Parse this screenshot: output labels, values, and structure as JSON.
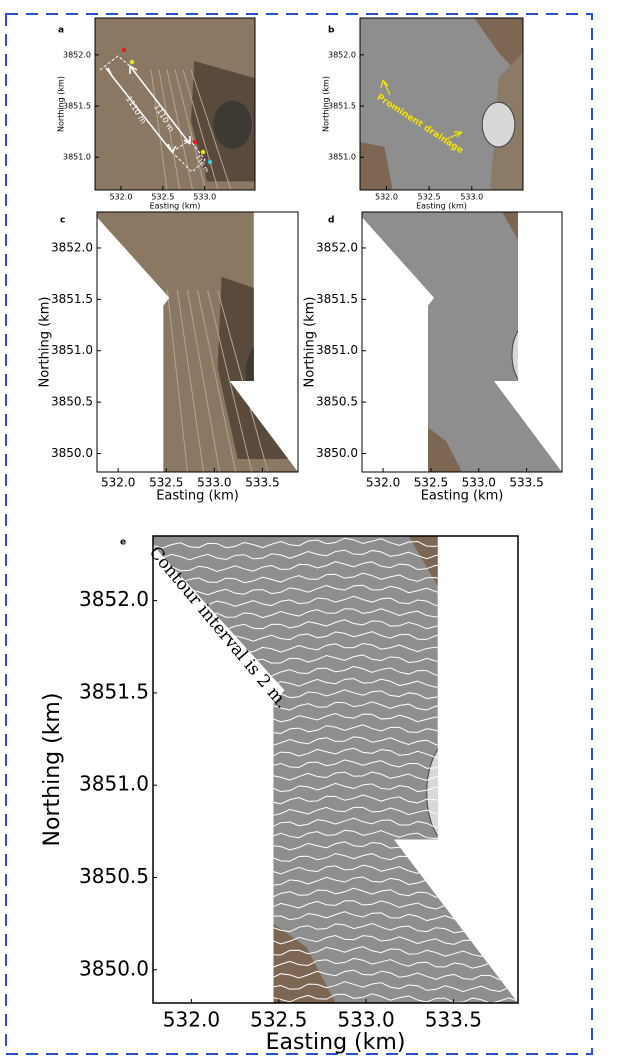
{
  "chart_data": [
    {
      "type": "image",
      "panel": "a",
      "xlabel": "Easting (km)",
      "ylabel": "Northing (km)",
      "xlim": [
        531.69,
        533.6
      ],
      "ylim": [
        3850.68,
        3852.36
      ],
      "xticks": [
        {
          "value": 532,
          "label": "532.0"
        },
        {
          "value": 532.5,
          "label": "532.5"
        },
        {
          "value": 533,
          "label": "533.0"
        }
      ],
      "yticks": [
        {
          "value": 3851,
          "label": "3851.0"
        },
        {
          "value": 3851.5,
          "label": "3851.5"
        },
        {
          "value": 3852,
          "label": "3852.0"
        }
      ],
      "annotations": [
        "1110 m",
        "1110 m",
        "110 m"
      ]
    },
    {
      "type": "image",
      "panel": "b",
      "xlabel": "Easting (km)",
      "ylabel": "Northing (km)",
      "xlim": [
        531.69,
        533.6
      ],
      "ylim": [
        3850.68,
        3852.36
      ],
      "xticks": [
        {
          "value": 532,
          "label": "532.0"
        },
        {
          "value": 532.5,
          "label": "532.5"
        },
        {
          "value": 533,
          "label": "533.0"
        }
      ],
      "yticks": [
        {
          "value": 3851,
          "label": "3851.0"
        },
        {
          "value": 3851.5,
          "label": "3851.5"
        },
        {
          "value": 3852,
          "label": "3852.0"
        }
      ],
      "annotations": [
        "Prominent drainage"
      ]
    },
    {
      "type": "image",
      "panel": "c",
      "xlabel": "Easting (km)",
      "ylabel": "Northing (km)",
      "xlim": [
        531.78,
        533.87
      ],
      "ylim": [
        3849.82,
        3852.35
      ],
      "xticks": [
        {
          "value": 532,
          "label": "532.0"
        },
        {
          "value": 532.5,
          "label": "532.5"
        },
        {
          "value": 533,
          "label": "533.0"
        },
        {
          "value": 533.5,
          "label": "533.5"
        }
      ],
      "yticks": [
        {
          "value": 3850,
          "label": "3850.0"
        },
        {
          "value": 3850.5,
          "label": "3850.5"
        },
        {
          "value": 3851,
          "label": "3851.0"
        },
        {
          "value": 3851.5,
          "label": "3851.5"
        },
        {
          "value": 3852,
          "label": "3852.0"
        }
      ],
      "annotations": []
    },
    {
      "type": "image",
      "panel": "d",
      "xlabel": "Easting (km)",
      "ylabel": "Northing (km)",
      "xlim": [
        531.78,
        533.87
      ],
      "ylim": [
        3849.82,
        3852.35
      ],
      "xticks": [
        {
          "value": 532,
          "label": "532.0"
        },
        {
          "value": 532.5,
          "label": "532.5"
        },
        {
          "value": 533,
          "label": "533.0"
        },
        {
          "value": 533.5,
          "label": "533.5"
        }
      ],
      "yticks": [
        {
          "value": 3850,
          "label": "3850.0"
        },
        {
          "value": 3850.5,
          "label": "3850.5"
        },
        {
          "value": 3851,
          "label": "3851.0"
        },
        {
          "value": 3851.5,
          "label": "3851.5"
        },
        {
          "value": 3852,
          "label": "3852.0"
        }
      ],
      "annotations": []
    },
    {
      "type": "image",
      "panel": "e",
      "xlabel": "Easting (km)",
      "ylabel": "Northing (km)",
      "xlim": [
        531.78,
        533.87
      ],
      "ylim": [
        3849.82,
        3852.35
      ],
      "xticks": [
        {
          "value": 532,
          "label": "532.0"
        },
        {
          "value": 532.5,
          "label": "532.5"
        },
        {
          "value": 533,
          "label": "533.0"
        },
        {
          "value": 533.5,
          "label": "533.5"
        }
      ],
      "yticks": [
        {
          "value": 3850,
          "label": "3850.0"
        },
        {
          "value": 3850.5,
          "label": "3850.5"
        },
        {
          "value": 3851,
          "label": "3851.0"
        },
        {
          "value": 3851.5,
          "label": "3851.5"
        },
        {
          "value": 3852,
          "label": "3852.0"
        }
      ],
      "annotations": [
        "Contour interval is 2 m."
      ]
    }
  ]
}
